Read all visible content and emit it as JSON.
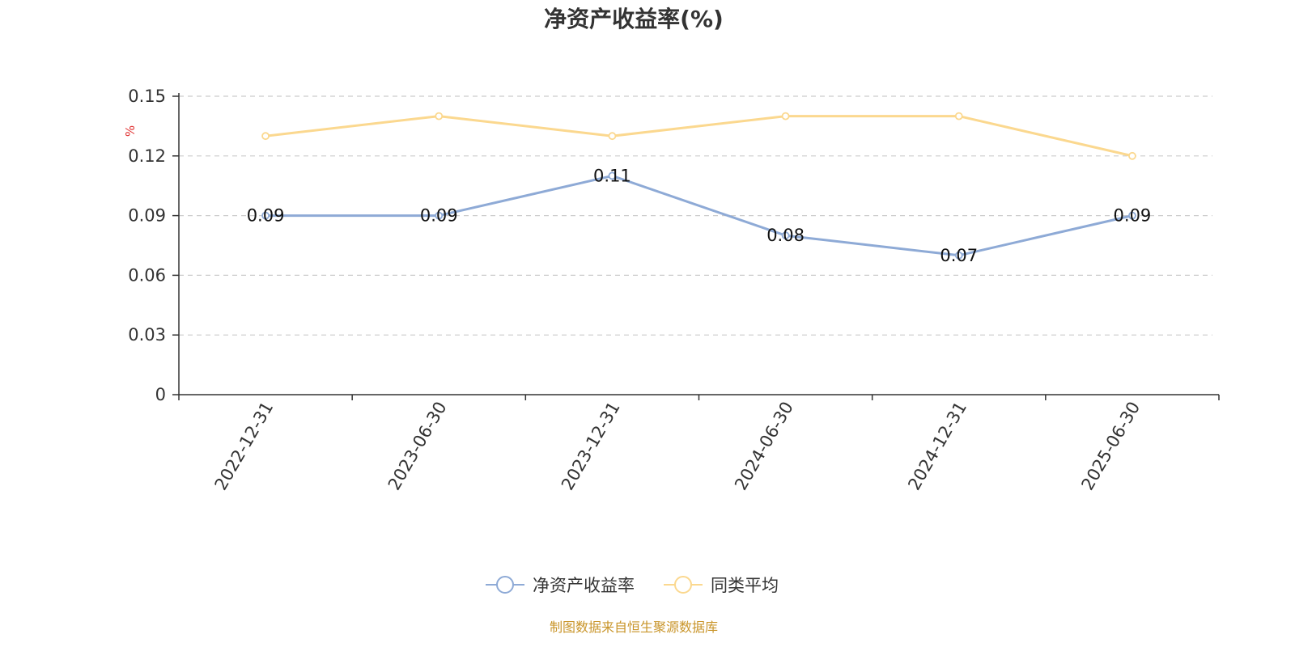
{
  "chart_data": {
    "type": "line",
    "title": "净资产收益率(%)",
    "ylabel": "%",
    "categories": [
      "2022-12-31",
      "2023-06-30",
      "2023-12-31",
      "2024-06-30",
      "2024-12-31",
      "2025-06-30"
    ],
    "yticks": [
      "0",
      "0.03",
      "0.06",
      "0.09",
      "0.12",
      "0.15"
    ],
    "ylim": [
      0,
      0.15
    ],
    "grid": true,
    "legend_placement": "bottom-center",
    "series": [
      {
        "name": "净资产收益率",
        "values": [
          0.09,
          0.09,
          0.11,
          0.08,
          0.07,
          0.09
        ],
        "labels": [
          "0.09",
          "0.09",
          "0.11",
          "0.08",
          "0.07",
          "0.09"
        ],
        "color": "#8eaad6"
      },
      {
        "name": "同类平均",
        "values": [
          0.13,
          0.14,
          0.13,
          0.14,
          0.14,
          0.12
        ],
        "color": "#fbd88f"
      }
    ]
  },
  "source_text": "制图数据来自恒生聚源数据库",
  "colors": {
    "source": "#c9952a",
    "unit": "#e03030",
    "axis": "#333333",
    "grid": "#cccccc"
  }
}
